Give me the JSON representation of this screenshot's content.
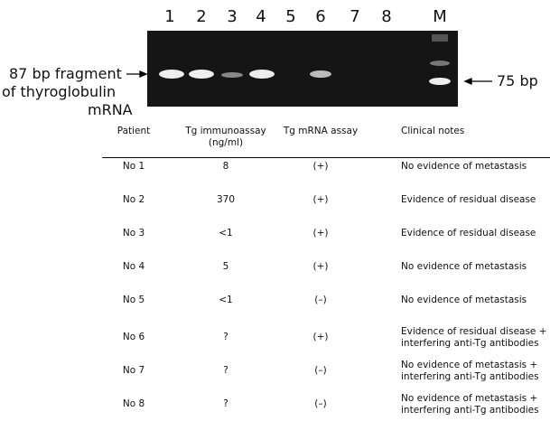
{
  "gel": {
    "lanes": [
      "1",
      "2",
      "3",
      "4",
      "5",
      "6",
      "7",
      "8",
      "M"
    ],
    "left_label": [
      "87 bp fragment",
      "of thyroglobulin",
      "mRNA"
    ],
    "right_label": "75 bp"
  },
  "table": {
    "headers": [
      "Patient",
      "Tg immunoassay\n(ng/ml)",
      "Tg mRNA assay",
      "Clinical notes"
    ],
    "rows": [
      [
        "No 1",
        "8",
        "(+)",
        "No evidence of metastasis"
      ],
      [
        "No 2",
        "370",
        "(+)",
        "Evidence of residual disease"
      ],
      [
        "No 3",
        "<1",
        "(+)",
        "Evidence of residual disease"
      ],
      [
        "No 4",
        "5",
        "(+)",
        "No evidence of metastasis"
      ],
      [
        "No 5",
        "<1",
        "(–)",
        "No evidence of metastasis"
      ],
      [
        "No 6",
        "?",
        "(+)",
        "Evidence of residual disease +\ninterfering anti-Tg antibodies"
      ],
      [
        "No 7",
        "?",
        "(–)",
        "No evidence of metastasis +\ninterfering anti-Tg antibodies"
      ],
      [
        "No 8",
        "?",
        "(–)",
        "No evidence of metastasis +\ninterfering anti-Tg antibodies"
      ]
    ]
  }
}
